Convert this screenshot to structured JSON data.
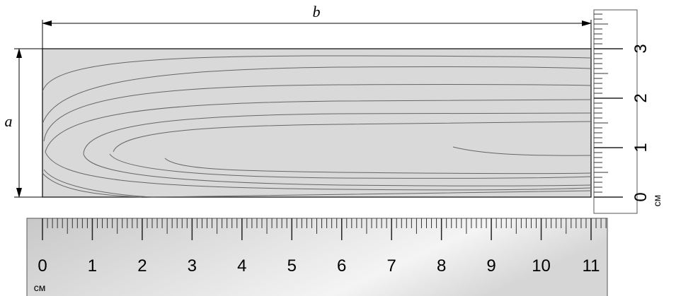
{
  "dimensions": {
    "width_label": "b",
    "height_label": "a"
  },
  "horizontal_ruler": {
    "ticks": [
      0,
      1,
      2,
      3,
      4,
      5,
      6,
      7,
      8,
      9,
      10,
      11
    ],
    "unit": "см"
  },
  "vertical_ruler": {
    "ticks": [
      0,
      1,
      2,
      3
    ],
    "unit": "см"
  }
}
